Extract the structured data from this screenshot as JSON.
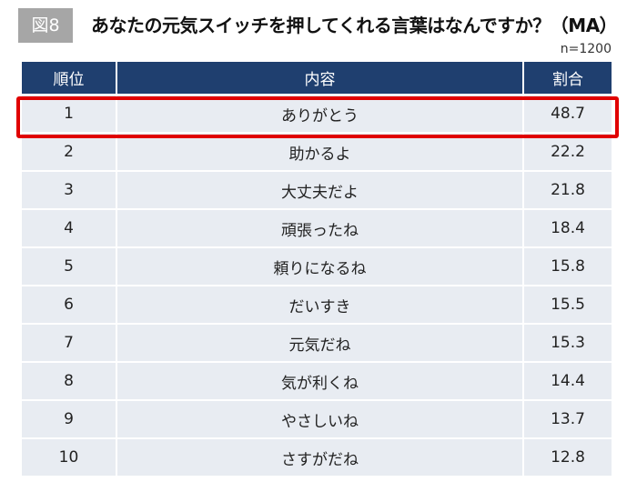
{
  "figure_label": "図8",
  "title": "あなたの元気スイッチを押してくれる言葉はなんですか？（MA）",
  "sample_size": "n=1200",
  "highlight_color": "#e00000",
  "header_color": "#1f3f6f",
  "table": {
    "headers": [
      "順位",
      "内容",
      "割合"
    ],
    "rows": [
      {
        "rank": "1",
        "phrase": "ありがとう",
        "percent": "48.7"
      },
      {
        "rank": "2",
        "phrase": "助かるよ",
        "percent": "22.2"
      },
      {
        "rank": "3",
        "phrase": "大丈夫だよ",
        "percent": "21.8"
      },
      {
        "rank": "4",
        "phrase": "頑張ったね",
        "percent": "18.4"
      },
      {
        "rank": "5",
        "phrase": "頼りになるね",
        "percent": "15.8"
      },
      {
        "rank": "6",
        "phrase": "だいすき",
        "percent": "15.5"
      },
      {
        "rank": "7",
        "phrase": "元気だね",
        "percent": "15.3"
      },
      {
        "rank": "8",
        "phrase": "気が利くね",
        "percent": "14.4"
      },
      {
        "rank": "9",
        "phrase": "やさしいね",
        "percent": "13.7"
      },
      {
        "rank": "10",
        "phrase": "さすがだね",
        "percent": "12.8"
      }
    ],
    "highlighted_row": 1
  }
}
